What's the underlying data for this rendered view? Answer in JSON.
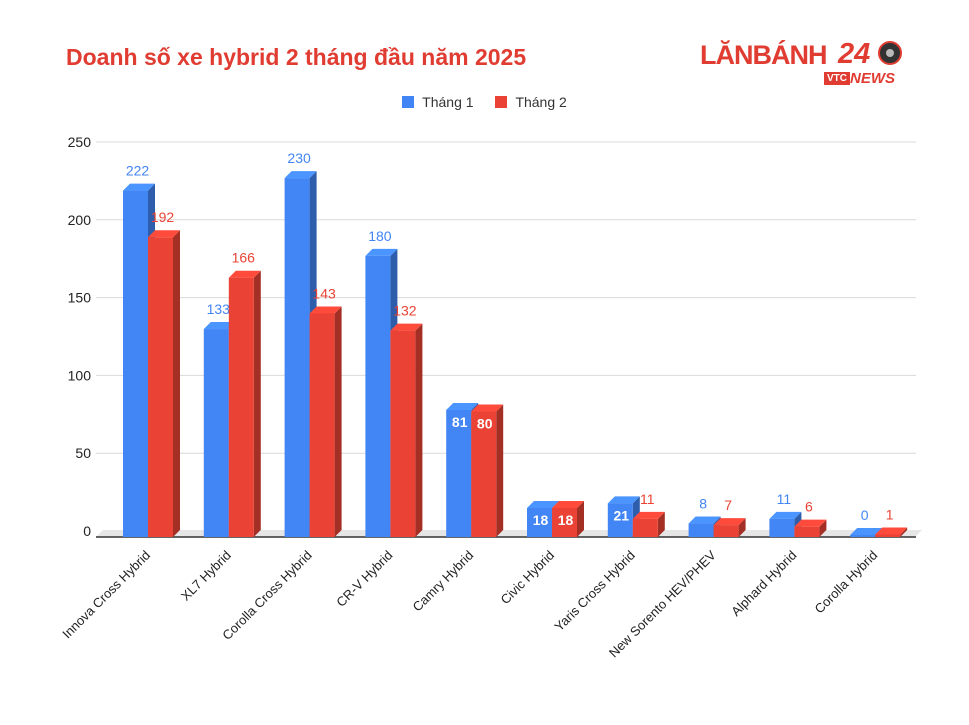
{
  "title": "Doanh số xe hybrid 2 tháng đầu năm 2025",
  "logo": {
    "main": "LĂNBÁNH",
    "number": "24",
    "vtc": "VTC",
    "news": "NEWS"
  },
  "colors": {
    "series1": "#4285f4",
    "series2": "#ea4335",
    "title": "#e03c31"
  },
  "chart_data": {
    "type": "bar",
    "title": "Doanh số xe hybrid 2 tháng đầu năm 2025",
    "xlabel": "",
    "ylabel": "",
    "ylim": [
      0,
      250
    ],
    "yticks": [
      0,
      50,
      100,
      150,
      200,
      250
    ],
    "grid": true,
    "legend_position": "top",
    "categories": [
      "Innova Cross Hybrid",
      "XL7 Hybrid",
      "Corolla Cross Hybrid",
      "CR-V Hybrid",
      "Camry Hybrid",
      "Civic Hybrid",
      "Yaris Cross Hybrid",
      "New Sorento HEV/PHEV",
      "Alphard Hybrid",
      "Corolla Hybrid"
    ],
    "series": [
      {
        "name": "Tháng 1",
        "values": [
          222,
          133,
          230,
          180,
          81,
          18,
          21,
          8,
          11,
          0
        ]
      },
      {
        "name": "Tháng 2",
        "values": [
          192,
          166,
          143,
          132,
          80,
          18,
          11,
          7,
          6,
          1
        ]
      }
    ]
  }
}
